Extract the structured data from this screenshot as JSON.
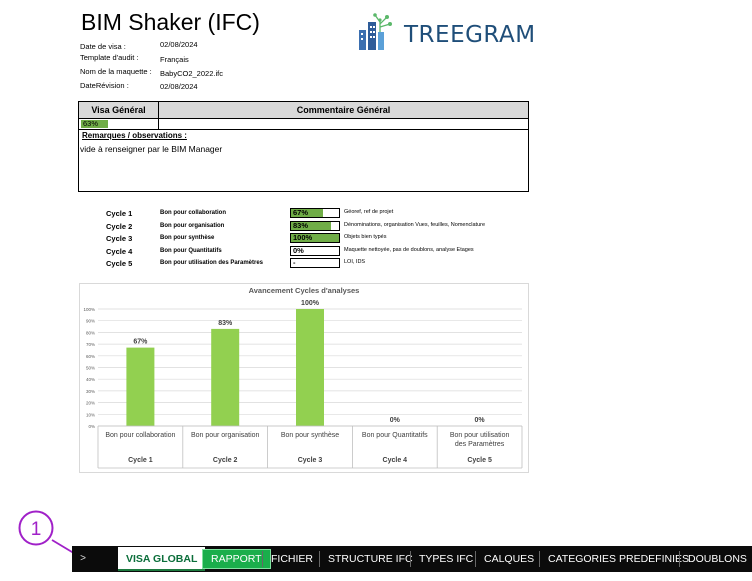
{
  "header": {
    "title": "BIM Shaker (IFC)",
    "fields": [
      {
        "label": "Date de visa :",
        "value": "02/08/2024"
      },
      {
        "label": "Template d'audit :",
        "value": "Français"
      },
      {
        "label": "Nom de la maquette :",
        "value": "BabyCO2_2022.ifc"
      },
      {
        "label": "DateRévision :",
        "value": "02/08/2024"
      }
    ],
    "logo_text": "TREEGRAM"
  },
  "visa": {
    "general_label": "Visa Général",
    "comment_label": "Commentaire Général",
    "percent_text": "63%",
    "percent": 63,
    "remarks_heading": "Remarques / observations :",
    "remarks_text": "vide à renseigner par le BIM Manager"
  },
  "cycles": [
    {
      "cycle": "Cycle 1",
      "desc": "Bon pour collaboration",
      "value_text": "67%",
      "value": 67,
      "comment": "Géoref, ref de projet"
    },
    {
      "cycle": "Cycle 2",
      "desc": "Bon pour organisation",
      "value_text": "83%",
      "value": 83,
      "comment": "Dénominations, organisation Vues, feuilles, Nomenclature"
    },
    {
      "cycle": "Cycle 3",
      "desc": "Bon pour synthèse",
      "value_text": "100%",
      "value": 100,
      "comment": "Objets bien typés"
    },
    {
      "cycle": "Cycle 4",
      "desc": "Bon pour Quantitatifs",
      "value_text": "0%",
      "value": 0,
      "comment": "Maquette nettoyée, pas de doublons, analyse Etages"
    },
    {
      "cycle": "Cycle 5",
      "desc": "Bon pour utilisation des Paramètres",
      "value_text": "-",
      "value": 0,
      "comment": "LOI, IDS"
    }
  ],
  "chart_data": {
    "type": "bar",
    "title": "Avancement Cycles d'analyses",
    "categories": [
      "Bon pour collaboration",
      "Bon pour organisation",
      "Bon pour synthèse",
      "Bon pour Quantitatifs",
      "Bon pour utilisation des Paramètres"
    ],
    "groups": [
      "Cycle 1",
      "Cycle 2",
      "Cycle 3",
      "Cycle 4",
      "Cycle 5"
    ],
    "values": [
      67,
      83,
      100,
      0,
      0
    ],
    "data_labels": [
      "67%",
      "83%",
      "100%",
      "0%",
      "0%"
    ],
    "yticks": [
      "0%",
      "10%",
      "20%",
      "30%",
      "40%",
      "50%",
      "60%",
      "70%",
      "80%",
      "90%",
      "100%"
    ],
    "ylim": [
      0,
      100
    ],
    "grid": true,
    "bar_color": "#92d050"
  },
  "annotation": {
    "number": "1"
  },
  "tabs": {
    "nav_arrow": ">",
    "items": [
      {
        "label": "VISA GLOBAL",
        "state": "active"
      },
      {
        "label": "RAPPORT",
        "state": "highlight"
      },
      {
        "label": "FICHIER"
      },
      {
        "label": "STRUCTURE IFC"
      },
      {
        "label": "TYPES IFC"
      },
      {
        "label": "CALQUES"
      },
      {
        "label": "CATEGORIES PREDEFINIES"
      },
      {
        "label": "DOUBLONS"
      }
    ]
  },
  "colors": {
    "green_fill": "#70ad47",
    "bar_green": "#92d050",
    "tab_bar": "#0b0b0b",
    "annotation": "#a020c8"
  }
}
